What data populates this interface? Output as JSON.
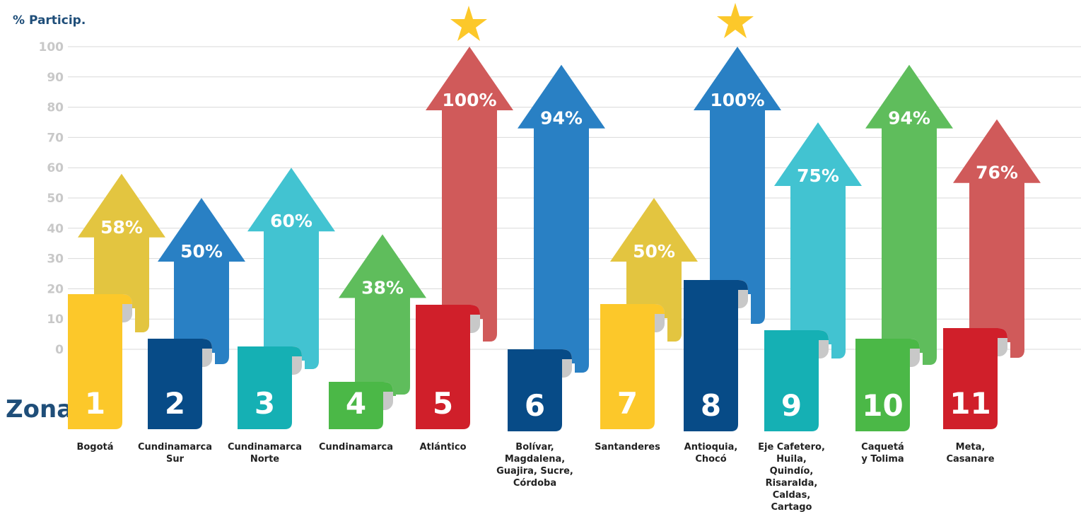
{
  "chart_data": {
    "type": "arrow-bar",
    "y_axis_label": "% Particip.",
    "x_axis_label": "Zona",
    "ylim": [
      0,
      100
    ],
    "yticks": [
      0,
      10,
      20,
      30,
      40,
      50,
      60,
      70,
      80,
      90,
      100
    ],
    "grid": true,
    "zones": [
      1,
      2,
      3,
      4,
      5,
      6,
      7,
      8,
      9,
      10,
      11
    ],
    "categories": [
      [
        "Bogotá"
      ],
      [
        "Cundinamarca",
        "Sur"
      ],
      [
        "Cundinamarca",
        "Norte"
      ],
      [
        "Cundinamarca"
      ],
      [
        "Atlántico"
      ],
      [
        "Bolívar,",
        "Magdalena,",
        "Guajira, Sucre,",
        "Córdoba"
      ],
      [
        "Santanderes"
      ],
      [
        "Antioquia,",
        "Chocó"
      ],
      [
        "Eje Cafetero,",
        "Huila,",
        "Quindío,",
        "Risaralda,",
        "Caldas,",
        "Cartago"
      ],
      [
        "Caquetá",
        "y Tolima"
      ],
      [
        "Meta,",
        "Casanare"
      ]
    ],
    "values": [
      58,
      50,
      60,
      38,
      100,
      94,
      50,
      100,
      75,
      94,
      76
    ],
    "value_labels": [
      "58%",
      "50%",
      "60%",
      "38%",
      "100%",
      "94%",
      "50%",
      "100%",
      "75%",
      "94%",
      "76%"
    ],
    "arrow_colors": [
      "#e3c540",
      "#2980c4",
      "#42c3d1",
      "#5fbd5c",
      "#d05a5a",
      "#2980c4",
      "#e3c540",
      "#2980c4",
      "#42c3d1",
      "#5fbd5c",
      "#d05a5a"
    ],
    "zone_colors": [
      "#fcc82a",
      "#074b87",
      "#15b0b4",
      "#4bb847",
      "#d01f2a",
      "#074b87",
      "#fcc82a",
      "#074b87",
      "#15b0b4",
      "#4bb847",
      "#d01f2a"
    ]
  }
}
